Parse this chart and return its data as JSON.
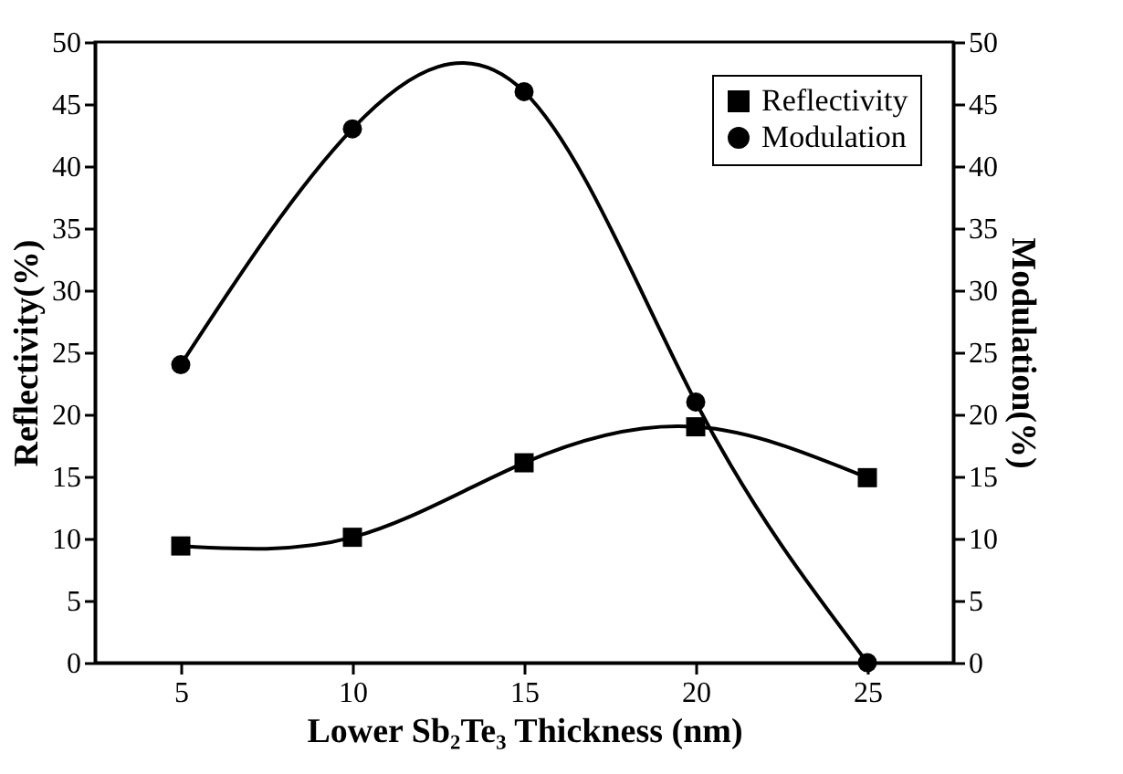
{
  "chart_data": {
    "type": "line",
    "xlabel": "Lower Sb₂Te₃ Thickness (nm)",
    "ylabel": "Reflectivity(%)",
    "y2label": "Modulation(%)",
    "x": [
      5,
      10,
      15,
      20,
      25
    ],
    "xlim": [
      2.5,
      27.5
    ],
    "xticks": [
      5,
      10,
      15,
      20,
      25
    ],
    "ylim": [
      0,
      50
    ],
    "yticks": [
      0,
      5,
      10,
      15,
      20,
      25,
      30,
      35,
      40,
      45,
      50
    ],
    "y2lim": [
      0,
      50
    ],
    "y2ticks": [
      0,
      5,
      10,
      15,
      20,
      25,
      30,
      35,
      40,
      45,
      50
    ],
    "series": [
      {
        "name": "Reflectivity",
        "color": "#000000",
        "marker": "square",
        "values": [
          9.4,
          10.1,
          16.1,
          19.0,
          14.9
        ]
      },
      {
        "name": "Modulation",
        "color": "#000000",
        "marker": "circle",
        "axis": "y2",
        "values": [
          24,
          43,
          46,
          21,
          0
        ]
      }
    ],
    "legend": "top right",
    "grid": false,
    "line_style": "solid"
  }
}
